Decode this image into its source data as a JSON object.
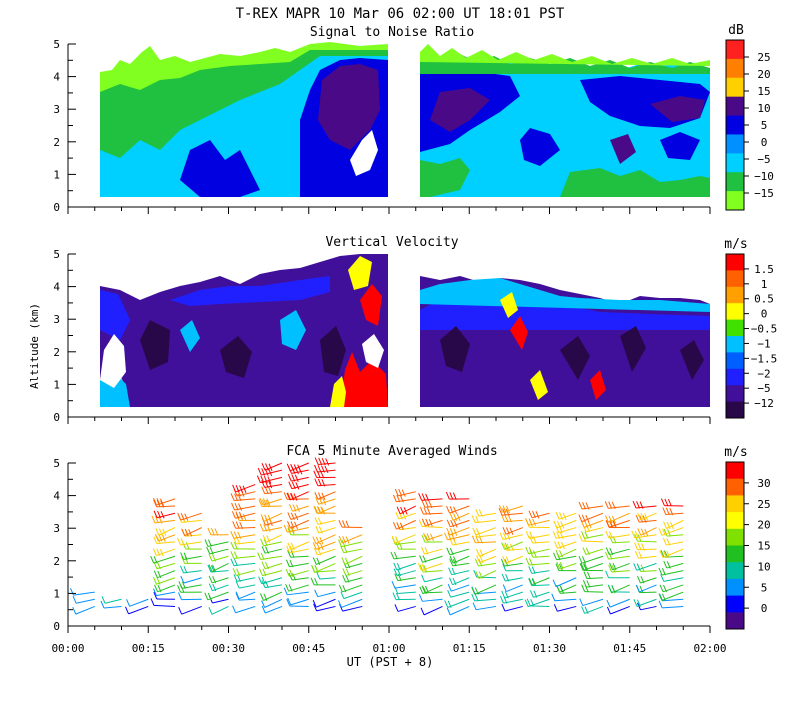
{
  "figure": {
    "title": "T-REX   MAPR 10 Mar 06   02:00 UT   18:01   PST",
    "xlabel": "UT  (PST + 8)",
    "ylabel": "Altitude (km)"
  },
  "chart_data": [
    {
      "type": "heatmap",
      "title": "Signal to Noise Ratio",
      "unit": "dB",
      "xlim": [
        0,
        120
      ],
      "ylim": [
        0,
        5
      ],
      "yticks": [
        0,
        1,
        2,
        3,
        4,
        5
      ],
      "data_gap_minutes": [
        55,
        61
      ],
      "colorbar": {
        "ticks": [
          "25",
          "20",
          "15",
          "10",
          "5",
          "0",
          "−5",
          "−10",
          "−15"
        ],
        "colors": [
          "#ff2020",
          "#ff8000",
          "#ffd000",
          "#4a0a88",
          "#0000e0",
          "#0090ff",
          "#00d0ff",
          "#20c040",
          "#80ff20"
        ]
      }
    },
    {
      "type": "heatmap",
      "title": "Vertical Velocity",
      "unit": "m/s",
      "xlim": [
        0,
        120
      ],
      "ylim": [
        0,
        5
      ],
      "yticks": [
        0,
        1,
        2,
        3,
        4,
        5
      ],
      "data_gap_minutes": [
        55,
        61
      ],
      "colorbar": {
        "ticks": [
          "1.5",
          "1",
          "0.5",
          "0",
          "−0.5",
          "−1",
          "−1.5",
          "−2",
          "−5",
          "−12"
        ],
        "colors": [
          "#ff0000",
          "#ff6000",
          "#ffa000",
          "#ffff00",
          "#40e000",
          "#00c0ff",
          "#0060ff",
          "#2020ff",
          "#40109a",
          "#280848"
        ]
      }
    },
    {
      "type": "scatter",
      "title": "FCA 5 Minute Averaged Winds",
      "unit": "m/s",
      "xlim": [
        0,
        120
      ],
      "ylim": [
        0,
        5
      ],
      "yticks": [
        0,
        1,
        2,
        3,
        4,
        5
      ],
      "xticks": [
        "00:00",
        "00:15",
        "00:30",
        "00:45",
        "01:00",
        "01:15",
        "01:30",
        "01:45",
        "02:00"
      ],
      "colorbar": {
        "ticks": [
          "30",
          "25",
          "20",
          "15",
          "10",
          "5",
          "0"
        ],
        "colors": [
          "#ff0000",
          "#ff6000",
          "#ffd000",
          "#ffff00",
          "#80e000",
          "#20c020",
          "#00c0a0",
          "#0090ff",
          "#0000ff",
          "#4a0a88"
        ]
      },
      "wind_profile_times_minutes": [
        5,
        10,
        15,
        20,
        25,
        30,
        35,
        40,
        45,
        50,
        55,
        65,
        70,
        75,
        80,
        85,
        90,
        95,
        100,
        105,
        110,
        115
      ],
      "wind_profile_top_km": [
        1.2,
        1.0,
        1.0,
        3.9,
        3.5,
        3.0,
        4.5,
        5.1,
        5.1,
        5.0,
        3.1,
        4.3,
        4.0,
        3.9,
        3.6,
        3.8,
        3.5,
        3.6,
        3.7,
        3.8,
        3.8,
        3.8
      ]
    }
  ]
}
